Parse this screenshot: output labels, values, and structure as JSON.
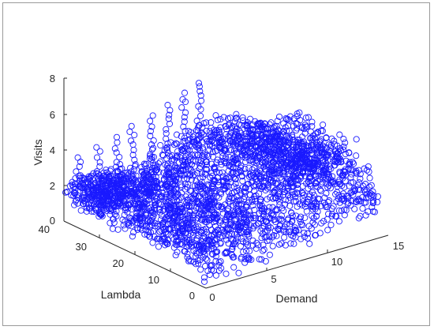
{
  "chart_data": {
    "type": "scatter",
    "title": "",
    "xlabel": "Demand",
    "ylabel": "Lambda",
    "zlabel": "Visits",
    "x_ticks": [
      "0",
      "5",
      "10",
      "15"
    ],
    "y_ticks": [
      "0",
      "10",
      "20",
      "30",
      "40"
    ],
    "z_ticks": [
      "0",
      "2",
      "4",
      "6",
      "8"
    ],
    "xlim": [
      0,
      15
    ],
    "ylim": [
      0,
      40
    ],
    "zlim": [
      0,
      8
    ],
    "marker": "circle",
    "grid": false,
    "legend": "none",
    "colors": {
      "marker": "#1a1aff",
      "axis": "#262626"
    },
    "note_on_points": "Dense point cloud of several thousand markers; representative sampled points listed below in data units [Demand, Lambda, Visits].",
    "points": []
  }
}
